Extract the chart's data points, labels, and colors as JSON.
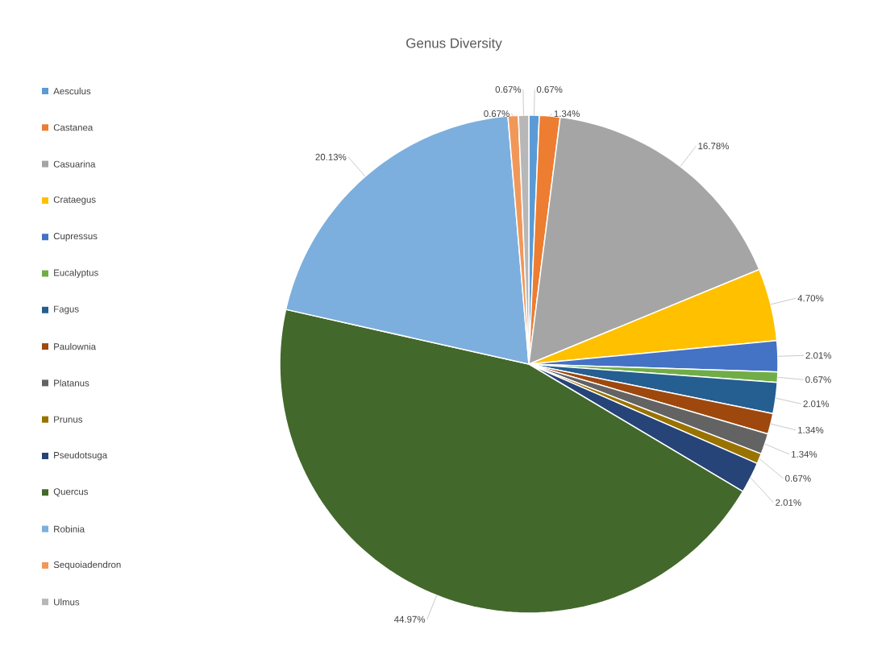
{
  "chart_data": {
    "type": "pie",
    "title": "Genus Diversity",
    "categories": [
      "Aesculus",
      "Castanea",
      "Casuarina",
      "Crataegus",
      "Cupressus",
      "Eucalyptus",
      "Fagus",
      "Paulownia",
      "Platanus",
      "Prunus",
      "Pseudotsuga",
      "Quercus",
      "Robinia",
      "Sequoiadendron",
      "Ulmus"
    ],
    "values": [
      0.67,
      1.34,
      16.78,
      4.7,
      2.01,
      0.67,
      2.01,
      1.34,
      1.34,
      0.67,
      2.01,
      44.97,
      20.13,
      0.67,
      0.67
    ],
    "value_labels": [
      "0.67%",
      "1.34%",
      "16.78%",
      "4.70%",
      "2.01%",
      "0.67%",
      "2.01%",
      "1.34%",
      "1.34%",
      "0.67%",
      "2.01%",
      "44.97%",
      "20.13%",
      "0.67%",
      "0.67%"
    ],
    "colors": [
      "#5b9bd5",
      "#ed7d31",
      "#a5a5a5",
      "#ffc000",
      "#4472c4",
      "#70ad47",
      "#255e91",
      "#9e480e",
      "#636363",
      "#997300",
      "#264478",
      "#43682b",
      "#7cafdd",
      "#f1975a",
      "#b7b7b7"
    ],
    "legend": "left"
  }
}
